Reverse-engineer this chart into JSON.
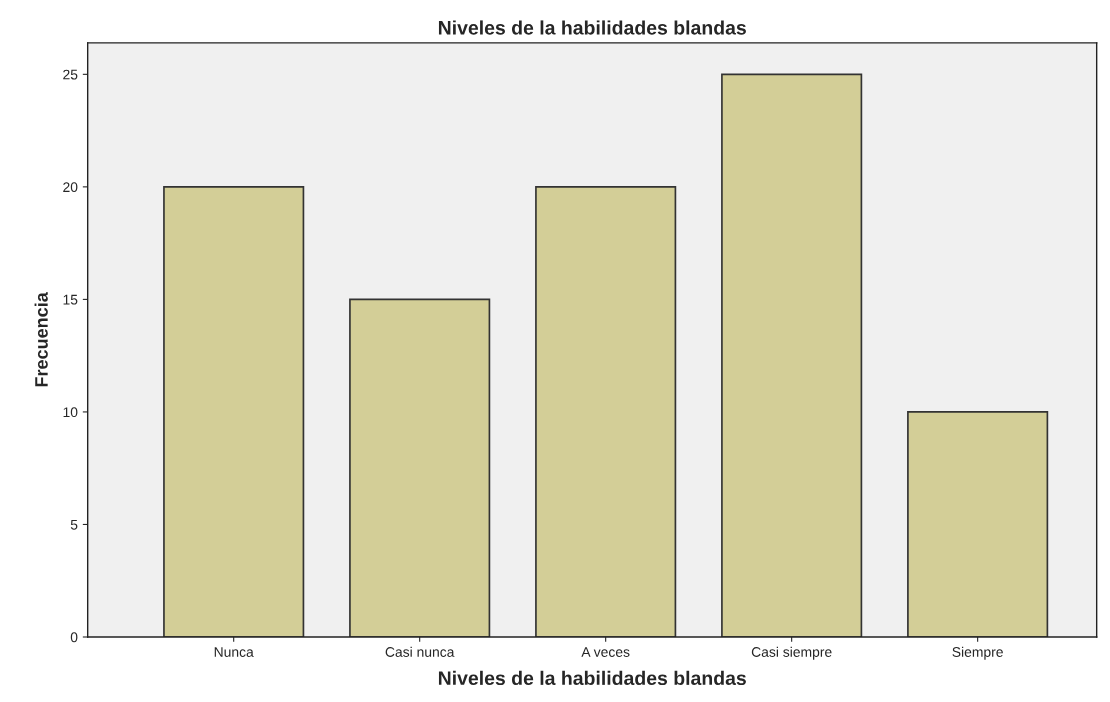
{
  "chart_data": {
    "type": "bar",
    "title": "Niveles de la habilidades blandas",
    "xlabel": "Niveles de la habilidades blandas",
    "ylabel": "Frecuencia",
    "categories": [
      "Nunca",
      "Casi nunca",
      "A veces",
      "Casi siempre",
      "Siempre"
    ],
    "values": [
      20,
      15,
      20,
      25,
      10
    ],
    "color": "#d3ce97",
    "ylim": [
      0,
      26.4
    ],
    "yticks": [
      0,
      5,
      10,
      15,
      20,
      25
    ],
    "grid": false
  }
}
